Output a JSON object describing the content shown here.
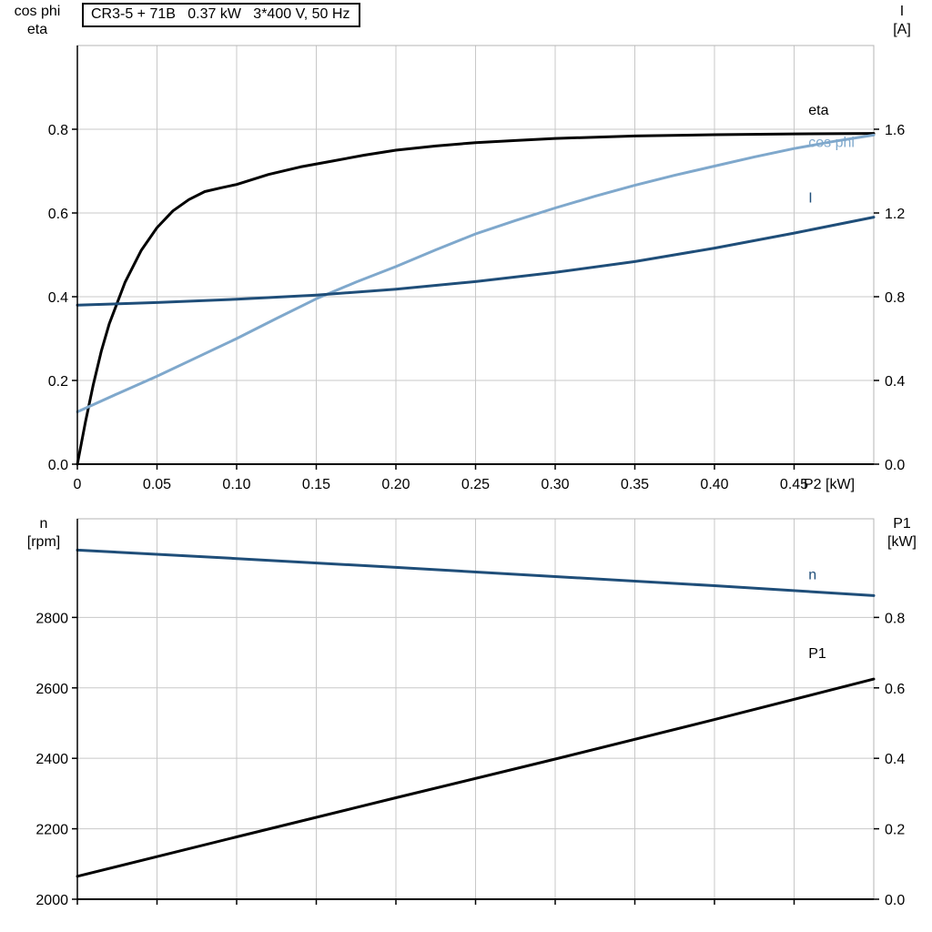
{
  "title": "CR3-5 + 71B   0.37 kW   3*400 V, 50 Hz",
  "chart_data": [
    {
      "type": "line",
      "title": "CR3-5 + 71B   0.37 kW   3*400 V, 50 Hz",
      "xlabel": "P2 [kW]",
      "xlim": [
        0,
        0.5
      ],
      "x_ticks": [
        0,
        0.05,
        0.1,
        0.15,
        0.2,
        0.25,
        0.3,
        0.35,
        0.4,
        0.45
      ],
      "x_tick_labels": [
        "0",
        "0.05",
        "0.10",
        "0.15",
        "0.20",
        "0.25",
        "0.30",
        "0.35",
        "0.40",
        "0.45"
      ],
      "grid": true,
      "legend_position": "inline-right",
      "left_axis": {
        "label_lines": [
          "cos phi",
          "eta"
        ],
        "lim": [
          0,
          1.0
        ],
        "ticks": [
          0,
          0.2,
          0.4,
          0.6,
          0.8
        ],
        "tick_labels": [
          "0.0",
          "0.2",
          "0.4",
          "0.6",
          "0.8"
        ]
      },
      "right_axis": {
        "label_lines": [
          "I",
          "[A]"
        ],
        "lim": [
          0,
          2.0
        ],
        "ticks": [
          0,
          0.4,
          0.8,
          1.2,
          1.6
        ],
        "tick_labels": [
          "0.0",
          "0.4",
          "0.8",
          "1.2",
          "1.6"
        ]
      },
      "series": [
        {
          "name": "eta",
          "axis": "left",
          "color": "#000000",
          "label_pos": {
            "x": 0.459,
            "y": 0.835
          },
          "x": [
            0,
            0.005,
            0.01,
            0.015,
            0.02,
            0.03,
            0.04,
            0.05,
            0.06,
            0.07,
            0.08,
            0.09,
            0.1,
            0.12,
            0.14,
            0.16,
            0.18,
            0.2,
            0.225,
            0.25,
            0.275,
            0.3,
            0.35,
            0.4,
            0.45,
            0.5
          ],
          "y": [
            0,
            0.1,
            0.19,
            0.27,
            0.335,
            0.435,
            0.51,
            0.565,
            0.605,
            0.632,
            0.651,
            0.66,
            0.668,
            0.692,
            0.71,
            0.724,
            0.738,
            0.75,
            0.76,
            0.768,
            0.773,
            0.778,
            0.784,
            0.787,
            0.789,
            0.79
          ]
        },
        {
          "name": "cos phi",
          "axis": "left",
          "color": "#7fa8cc",
          "label_pos": {
            "x": 0.459,
            "y": 0.758
          },
          "x": [
            0,
            0.025,
            0.05,
            0.075,
            0.1,
            0.125,
            0.15,
            0.175,
            0.2,
            0.225,
            0.25,
            0.275,
            0.3,
            0.325,
            0.35,
            0.375,
            0.4,
            0.425,
            0.45,
            0.475,
            0.5
          ],
          "y": [
            0.125,
            0.168,
            0.21,
            0.255,
            0.3,
            0.348,
            0.395,
            0.435,
            0.472,
            0.512,
            0.55,
            0.582,
            0.612,
            0.64,
            0.666,
            0.69,
            0.712,
            0.734,
            0.754,
            0.771,
            0.786
          ]
        },
        {
          "name": "I",
          "axis": "right",
          "color": "#1f4e79",
          "label_pos": {
            "x": 0.459,
            "y": 1.25
          },
          "x": [
            0,
            0.05,
            0.1,
            0.15,
            0.2,
            0.25,
            0.3,
            0.35,
            0.4,
            0.45,
            0.5
          ],
          "y": [
            0.76,
            0.772,
            0.788,
            0.808,
            0.836,
            0.872,
            0.916,
            0.968,
            1.032,
            1.104,
            1.18
          ]
        }
      ]
    },
    {
      "type": "line",
      "title": "",
      "xlabel": "",
      "xlim": [
        0,
        0.5
      ],
      "x_ticks": [
        0,
        0.05,
        0.1,
        0.15,
        0.2,
        0.25,
        0.3,
        0.35,
        0.4,
        0.45
      ],
      "x_tick_labels": [],
      "grid": true,
      "legend_position": "inline-right",
      "left_axis": {
        "label_lines": [
          "n",
          "[rpm]"
        ],
        "lim": [
          2000,
          3080
        ],
        "ticks": [
          2000,
          2200,
          2400,
          2600,
          2800
        ],
        "tick_labels": [
          "2000",
          "2200",
          "2400",
          "2600",
          "2800"
        ]
      },
      "right_axis": {
        "label_lines": [
          "P1",
          "[kW]"
        ],
        "lim": [
          0,
          1.08
        ],
        "ticks": [
          0,
          0.2,
          0.4,
          0.6,
          0.8
        ],
        "tick_labels": [
          "0.0",
          "0.2",
          "0.4",
          "0.6",
          "0.8"
        ]
      },
      "series": [
        {
          "name": "n",
          "axis": "left",
          "color": "#1f4e79",
          "label_pos": {
            "x": 0.459,
            "y": 2908
          },
          "x": [
            0,
            0.1,
            0.2,
            0.3,
            0.4,
            0.5
          ],
          "y": [
            2991,
            2967,
            2942,
            2916,
            2890,
            2862
          ]
        },
        {
          "name": "P1",
          "axis": "right",
          "color": "#000000",
          "label_pos": {
            "x": 0.459,
            "y": 0.685
          },
          "x": [
            0,
            0.1,
            0.2,
            0.3,
            0.4,
            0.5
          ],
          "y": [
            0.065,
            0.177,
            0.288,
            0.398,
            0.51,
            0.625
          ]
        }
      ]
    }
  ],
  "colors": {
    "grid": "#c8c8c8",
    "frame": "#b4b4b4",
    "axis": "#000000",
    "curve_dark_blue": "#1f4e79",
    "curve_light_blue": "#7fa8cc",
    "curve_black": "#000000"
  }
}
